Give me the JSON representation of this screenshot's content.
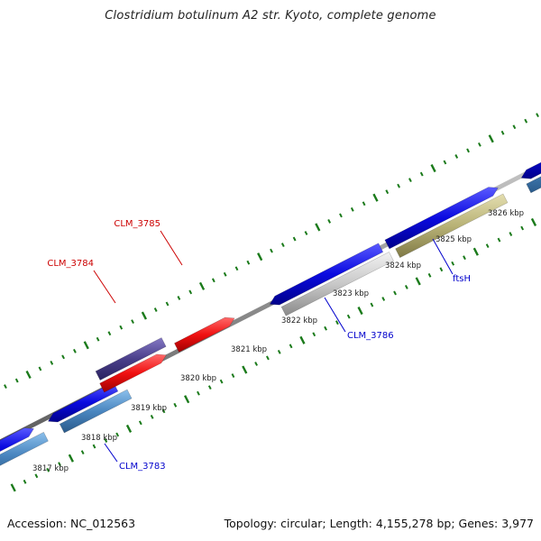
{
  "title": "Clostridium botulinum A2 str. Kyoto, complete genome",
  "footer": {
    "accession": "Accession: NC_012563",
    "summary": "Topology: circular; Length: 4,155,278 bp; Genes: 3,977"
  },
  "colors": {
    "backbone": "#8c8c8c",
    "cds_forward": "#0a0ae0",
    "cds_reverse": "#4a86c0",
    "highlight_red": "#f01010",
    "dark_purple": "#4a3f8a",
    "light_gray": "#c8c8c8",
    "khaki": "#b8b276",
    "tick": "#1a7a1a",
    "label_red": "#cc0000",
    "label_blue": "#0000cc"
  },
  "kbp_labels": [
    "3817 kbp",
    "3818 kbp",
    "3819 kbp",
    "3820 kbp",
    "3821 kbp",
    "3822 kbp",
    "3823 kbp",
    "3824 kbp",
    "3825 kbp",
    "3826 kbp"
  ],
  "gene_labels": [
    {
      "id": "CLM_3783",
      "color": "label_blue"
    },
    {
      "id": "CLM_3784",
      "color": "label_red"
    },
    {
      "id": "CLM_3785",
      "color": "label_red"
    },
    {
      "id": "CLM_3786",
      "color": "label_blue"
    },
    {
      "id": "ftsH",
      "color": "label_blue"
    }
  ]
}
